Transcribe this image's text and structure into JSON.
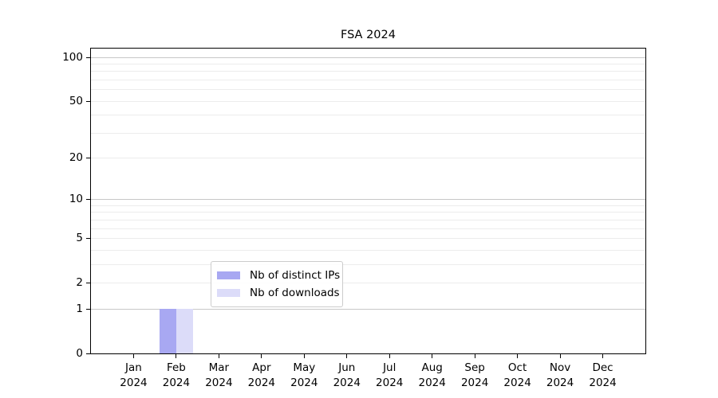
{
  "title": "FSA 2024",
  "chart_data": {
    "type": "bar",
    "title": "FSA 2024",
    "categories": [
      "Jan",
      "Feb",
      "Mar",
      "Apr",
      "May",
      "Jun",
      "Jul",
      "Aug",
      "Sep",
      "Oct",
      "Nov",
      "Dec"
    ],
    "category_year": "2024",
    "series": [
      {
        "name": "Nb of distinct IPs",
        "color": "#a8a8f2",
        "values": [
          0,
          1,
          0,
          0,
          0,
          0,
          0,
          0,
          0,
          0,
          0,
          0
        ]
      },
      {
        "name": "Nb of downloads",
        "color": "#dcdcf9",
        "values": [
          0,
          1,
          0,
          0,
          0,
          0,
          0,
          0,
          0,
          0,
          0,
          0
        ]
      }
    ],
    "xlabel": "",
    "ylabel": "",
    "bar_width": 0.4,
    "x_axis": {
      "min": -1,
      "max": 12
    },
    "y_axis": {
      "scale": "log1p",
      "min": 0,
      "max": 115,
      "tick_values": [
        0,
        1,
        2,
        5,
        10,
        20,
        50,
        100
      ],
      "major_gridlines": [
        1,
        10,
        100
      ],
      "minor_gridlines": [
        2,
        3,
        4,
        5,
        6,
        7,
        8,
        9,
        20,
        30,
        40,
        50,
        60,
        70,
        80,
        90
      ]
    },
    "legend": {
      "position": "lower center",
      "entries": [
        "Nb of distinct IPs",
        "Nb of downloads"
      ]
    },
    "colors": {
      "major_grid": "#c7c7c7",
      "minor_grid": "#ececec",
      "spine": "#000000",
      "text": "#000000",
      "background": "#ffffff"
    },
    "grid": true
  }
}
